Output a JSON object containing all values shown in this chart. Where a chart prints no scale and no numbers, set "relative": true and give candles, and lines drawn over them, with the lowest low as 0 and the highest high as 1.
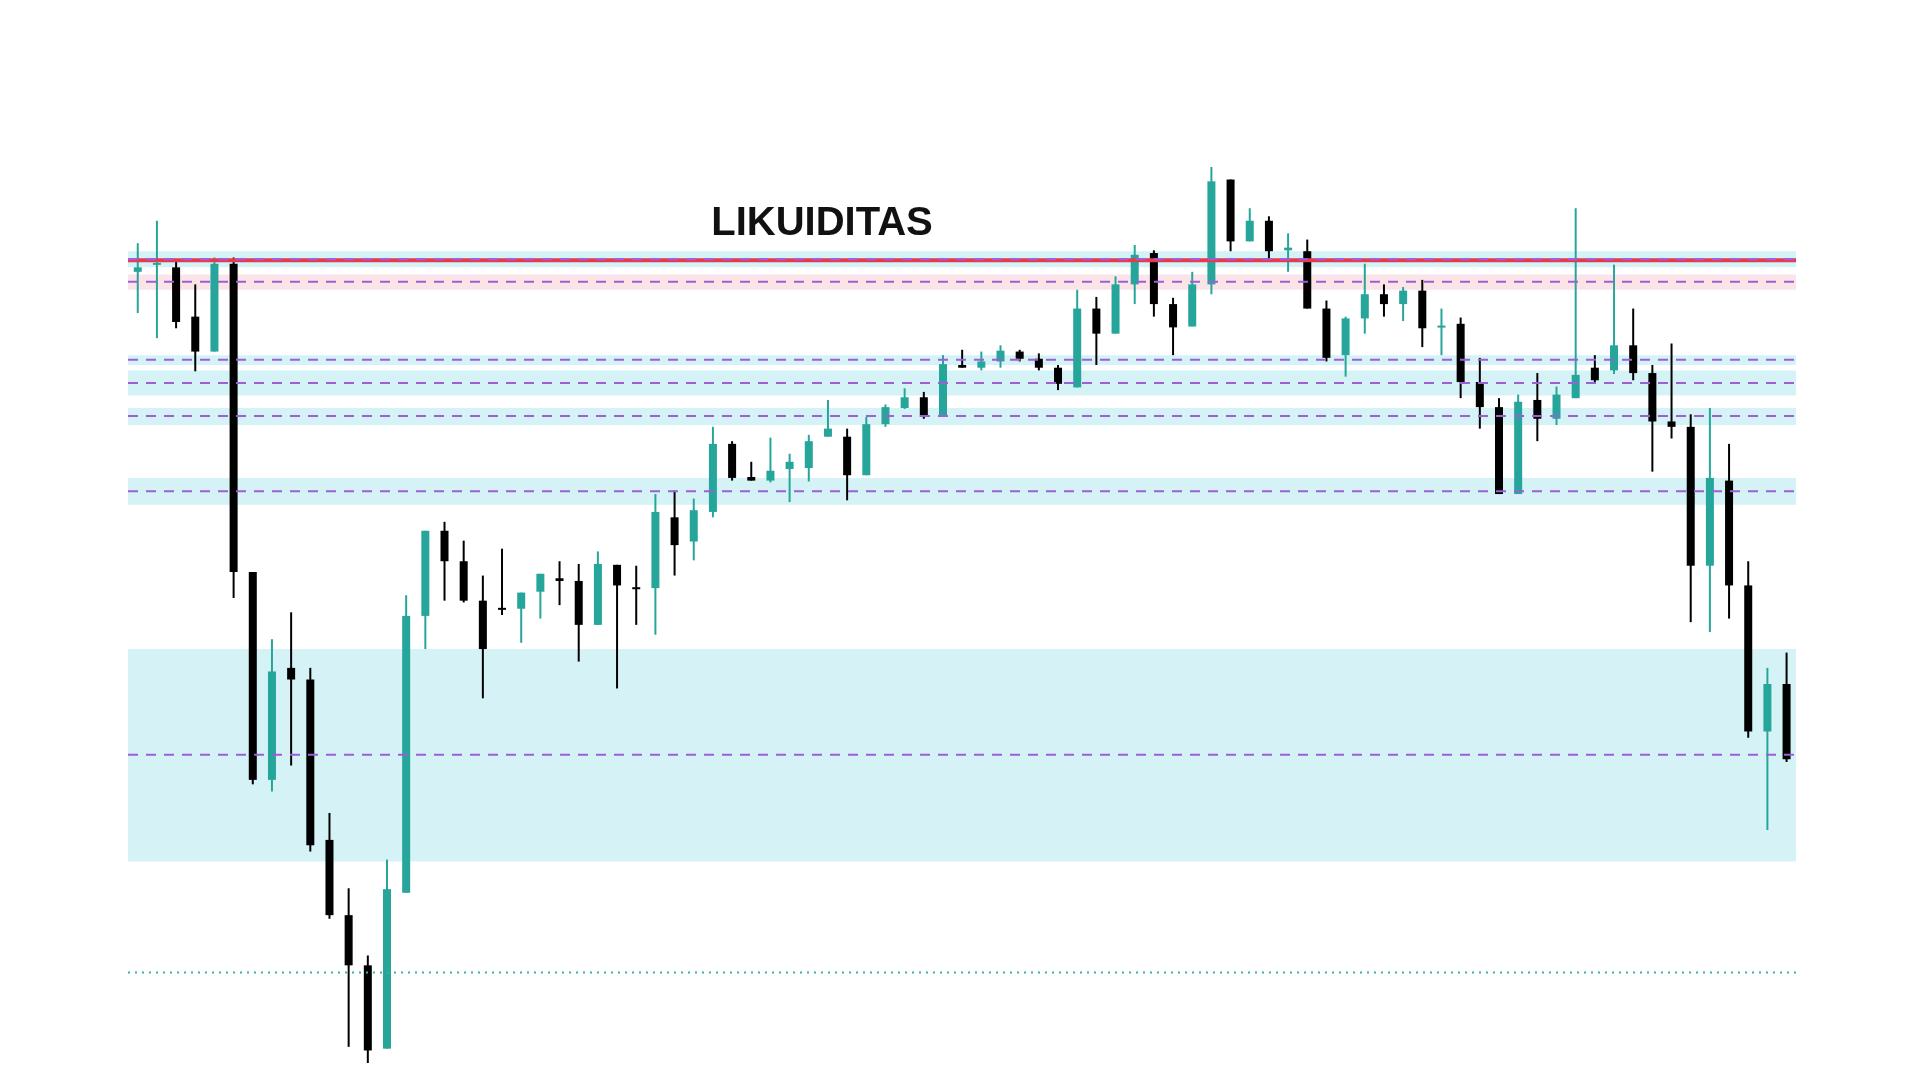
{
  "chart_data": {
    "type": "candlestick",
    "relative": true,
    "categories": [
      null,
      null,
      null,
      null,
      null,
      null,
      null,
      null,
      null,
      null,
      null,
      null,
      null,
      null,
      null,
      null,
      null,
      null,
      null,
      null,
      null,
      null,
      null,
      null,
      null,
      null,
      null,
      null,
      null,
      null,
      null,
      null,
      null,
      null,
      null,
      null,
      null,
      null,
      null,
      null,
      null,
      null,
      null,
      null,
      null,
      null,
      null,
      null,
      null,
      null,
      null,
      null,
      null,
      null,
      null,
      null,
      null,
      null,
      null,
      null,
      null,
      null,
      null,
      null,
      null,
      null,
      null,
      null,
      null,
      null,
      null,
      null,
      null,
      null,
      null,
      null,
      null,
      null,
      null,
      null,
      null,
      null,
      null,
      null,
      null,
      null,
      null
    ],
    "ohlc": [
      [
        0.883,
        0.915,
        0.837,
        0.888
      ],
      [
        0.891,
        0.94,
        0.809,
        0.893
      ],
      [
        0.888,
        0.896,
        0.82,
        0.827
      ],
      [
        0.833,
        0.869,
        0.772,
        0.794
      ],
      [
        0.794,
        0.899,
        0.794,
        0.892
      ],
      [
        0.892,
        0.899,
        0.519,
        0.548
      ],
      [
        0.548,
        0.548,
        0.311,
        0.316
      ],
      [
        0.316,
        0.473,
        0.303,
        0.437
      ],
      [
        0.441,
        0.503,
        0.332,
        0.428
      ],
      [
        0.428,
        0.441,
        0.236,
        0.243
      ],
      [
        0.249,
        0.279,
        0.161,
        0.165
      ],
      [
        0.165,
        0.195,
        0.018,
        0.109
      ],
      [
        0.109,
        0.12,
        0,
        0.014
      ],
      [
        0.016,
        0.227,
        0.016,
        0.194
      ],
      [
        0.19,
        0.522,
        0.19,
        0.499
      ],
      [
        0.499,
        0.594,
        0.462,
        0.594
      ],
      [
        0.594,
        0.604,
        0.516,
        0.56
      ],
      [
        0.56,
        0.583,
        0.514,
        0.516
      ],
      [
        0.516,
        0.544,
        0.407,
        0.462
      ],
      [
        0.508,
        0.574,
        0.5,
        0.507
      ],
      [
        0.507,
        0.525,
        0.469,
        0.525
      ],
      [
        0.526,
        0.546,
        0.496,
        0.546
      ],
      [
        0.541,
        0.56,
        0.511,
        0.538
      ],
      [
        0.538,
        0.557,
        0.448,
        0.489
      ],
      [
        0.489,
        0.571,
        0.489,
        0.557
      ],
      [
        0.556,
        0.556,
        0.418,
        0.533
      ],
      [
        0.531,
        0.555,
        0.489,
        0.529
      ],
      [
        0.53,
        0.635,
        0.478,
        0.615
      ],
      [
        0.609,
        0.639,
        0.544,
        0.578
      ],
      [
        0.582,
        0.63,
        0.561,
        0.617
      ],
      [
        0.615,
        0.71,
        0.609,
        0.691
      ],
      [
        0.691,
        0.694,
        0.65,
        0.653
      ],
      [
        0.654,
        0.671,
        0.65,
        0.65
      ],
      [
        0.65,
        0.698,
        0.648,
        0.661
      ],
      [
        0.663,
        0.68,
        0.626,
        0.671
      ],
      [
        0.664,
        0.701,
        0.649,
        0.694
      ],
      [
        0.699,
        0.74,
        0.699,
        0.708
      ],
      [
        0.699,
        0.708,
        0.628,
        0.656
      ],
      [
        0.656,
        0.721,
        0.656,
        0.713
      ],
      [
        0.713,
        0.735,
        0.71,
        0.732
      ],
      [
        0.731,
        0.753,
        0.73,
        0.743
      ],
      [
        0.743,
        0.749,
        0.719,
        0.721
      ],
      [
        0.723,
        0.79,
        0.721,
        0.78
      ],
      [
        0.779,
        0.796,
        0.776,
        0.776
      ],
      [
        0.776,
        0.794,
        0.773,
        0.783
      ],
      [
        0.783,
        0.801,
        0.776,
        0.795
      ],
      [
        0.794,
        0.796,
        0.783,
        0.786
      ],
      [
        0.786,
        0.792,
        0.773,
        0.776
      ],
      [
        0.776,
        0.779,
        0.751,
        0.758
      ],
      [
        0.754,
        0.863,
        0.754,
        0.842
      ],
      [
        0.842,
        0.855,
        0.779,
        0.814
      ],
      [
        0.814,
        0.878,
        0.814,
        0.869
      ],
      [
        0.869,
        0.913,
        0.847,
        0.902
      ],
      [
        0.904,
        0.907,
        0.833,
        0.847
      ],
      [
        0.847,
        0.854,
        0.79,
        0.821
      ],
      [
        0.822,
        0.883,
        0.822,
        0.869
      ],
      [
        0.869,
        1,
        0.858,
        0.984
      ],
      [
        0.986,
        0.986,
        0.906,
        0.917
      ],
      [
        0.917,
        0.954,
        0.917,
        0.94
      ],
      [
        0.94,
        0.945,
        0.896,
        0.906
      ],
      [
        0.907,
        0.926,
        0.883,
        0.91
      ],
      [
        0.906,
        0.919,
        0.842,
        0.842
      ],
      [
        0.842,
        0.851,
        0.783,
        0.787
      ],
      [
        0.79,
        0.833,
        0.766,
        0.831
      ],
      [
        0.831,
        0.892,
        0.814,
        0.858
      ],
      [
        0.858,
        0.869,
        0.833,
        0.847
      ],
      [
        0.847,
        0.866,
        0.828,
        0.862
      ],
      [
        0.862,
        0.874,
        0.799,
        0.82
      ],
      [
        0.821,
        0.842,
        0.79,
        0.823
      ],
      [
        0.825,
        0.832,
        0.742,
        0.76
      ],
      [
        0.76,
        0.787,
        0.708,
        0.732
      ],
      [
        0.732,
        0.742,
        0.635,
        0.635
      ],
      [
        0.635,
        0.746,
        0.635,
        0.738
      ],
      [
        0.74,
        0.77,
        0.694,
        0.719
      ],
      [
        0.719,
        0.755,
        0.712,
        0.746
      ],
      [
        0.742,
        0.954,
        0.742,
        0.768
      ],
      [
        0.776,
        0.79,
        0.76,
        0.762
      ],
      [
        0.773,
        0.891,
        0.769,
        0.801
      ],
      [
        0.801,
        0.842,
        0.762,
        0.77
      ],
      [
        0.77,
        0.779,
        0.66,
        0.716
      ],
      [
        0.716,
        0.803,
        0.697,
        0.71
      ],
      [
        0.71,
        0.724,
        0.492,
        0.555
      ],
      [
        0.555,
        0.731,
        0.481,
        0.653
      ],
      [
        0.65,
        0.691,
        0.496,
        0.533
      ],
      [
        0.533,
        0.56,
        0.363,
        0.37
      ],
      [
        0.37,
        0.441,
        0.26,
        0.423
      ],
      [
        0.423,
        0.458,
        0.336,
        0.339
      ]
    ],
    "colors": [
      "#26a69a",
      "#26a69a",
      "#000000",
      "#000000",
      "#26a69a",
      "#000000",
      "#000000",
      "#26a69a",
      "#000000",
      "#000000",
      "#000000",
      "#000000",
      "#000000",
      "#26a69a",
      "#26a69a",
      "#26a69a",
      "#000000",
      "#000000",
      "#000000",
      "#000000",
      "#26a69a",
      "#26a69a",
      "#000000",
      "#000000",
      "#26a69a",
      "#000000",
      "#000000",
      "#26a69a",
      "#000000",
      "#26a69a",
      "#26a69a",
      "#000000",
      "#000000",
      "#26a69a",
      "#26a69a",
      "#26a69a",
      "#26a69a",
      "#000000",
      "#26a69a",
      "#26a69a",
      "#26a69a",
      "#000000",
      "#26a69a",
      "#000000",
      "#26a69a",
      "#26a69a",
      "#000000",
      "#000000",
      "#000000",
      "#26a69a",
      "#000000",
      "#26a69a",
      "#26a69a",
      "#000000",
      "#000000",
      "#26a69a",
      "#26a69a",
      "#000000",
      "#26a69a",
      "#000000",
      "#26a69a",
      "#000000",
      "#000000",
      "#26a69a",
      "#26a69a",
      "#000000",
      "#26a69a",
      "#000000",
      "#26a69a",
      "#000000",
      "#000000",
      "#000000",
      "#26a69a",
      "#000000",
      "#26a69a",
      "#26a69a",
      "#000000",
      "#26a69a",
      "#000000",
      "#000000",
      "#000000",
      "#000000",
      "#26a69a",
      "#000000",
      "#000000",
      "#26a69a",
      "#000000"
    ],
    "ref_lines": [
      {
        "axis": "y",
        "value": 0.896,
        "label": "LIKUIDITAS",
        "color": "#e53950",
        "line_style": "solid"
      },
      {
        "axis": "y",
        "value": 0.101,
        "color": "#3bb3a8",
        "line_style": "dotted"
      },
      {
        "axis": "y",
        "value": 0.344,
        "color": "#9c5fd6",
        "line_style": "dashed"
      },
      {
        "axis": "y",
        "value": 0.638,
        "color": "#9c5fd6",
        "line_style": "dashed"
      },
      {
        "axis": "y",
        "value": 0.722,
        "color": "#9c5fd6",
        "line_style": "dashed"
      },
      {
        "axis": "y",
        "value": 0.759,
        "color": "#9c5fd6",
        "line_style": "dashed"
      },
      {
        "axis": "y",
        "value": 0.785,
        "color": "#9c5fd6",
        "line_style": "dashed"
      },
      {
        "axis": "y",
        "value": 0.872,
        "color": "#9c5fd6",
        "line_style": "dashed"
      },
      {
        "axis": "y",
        "value": 0.897,
        "color": "#9c5fd6",
        "line_style": "dashed"
      }
    ],
    "bands": [
      {
        "axis": "y",
        "from": 0.225,
        "to": 0.462,
        "color": "#b3e9f0"
      },
      {
        "axis": "y",
        "from": 0.623,
        "to": 0.653,
        "color": "#b3e9f0"
      },
      {
        "axis": "y",
        "from": 0.712,
        "to": 0.731,
        "color": "#b3e9f0"
      },
      {
        "axis": "y",
        "from": 0.745,
        "to": 0.773,
        "color": "#b3e9f0"
      },
      {
        "axis": "y",
        "from": 0.779,
        "to": 0.79,
        "color": "#b3e9f0"
      },
      {
        "axis": "y",
        "from": 0.863,
        "to": 0.88,
        "color": "#f8cdd6"
      },
      {
        "axis": "y",
        "from": 0.888,
        "to": 0.906,
        "color": "#b3e9f0"
      }
    ]
  }
}
